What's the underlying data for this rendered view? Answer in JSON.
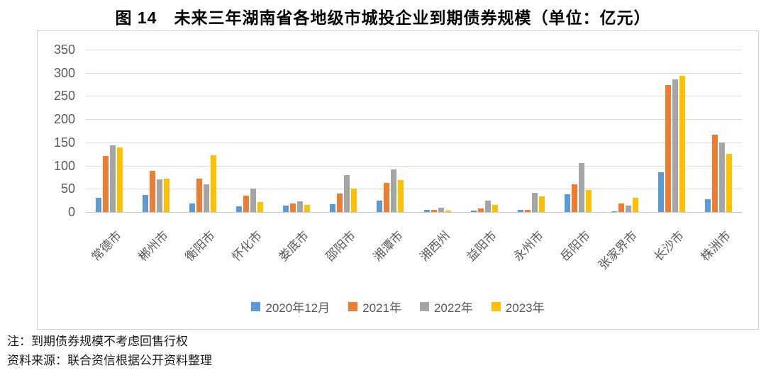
{
  "title": "图 14　未来三年湖南省各地级市城投企业到期债券规模（单位：亿元）",
  "notes": {
    "line1": "注：到期债券规模不考虑回售行权",
    "line2": "资料来源：联合资信根据公开资料整理"
  },
  "colors": {
    "series_blue": "#5B9BD5",
    "series_orange": "#ED7D31",
    "series_gray": "#A5A5A5",
    "series_yellow": "#FFC000",
    "gridline": "#d9d9d9",
    "axis_text": "#595959",
    "frame_border": "#cfcfcf"
  },
  "chart_data": {
    "type": "bar",
    "title": "图 14　未来三年湖南省各地级市城投企业到期债券规模（单位：亿元）",
    "unit": "亿元",
    "categories": [
      "常德市",
      "郴州市",
      "衡阳市",
      "怀化市",
      "娄底市",
      "邵阳市",
      "湘潭市",
      "湘西州",
      "益阳市",
      "永州市",
      "岳阳市",
      "张家界市",
      "长沙市",
      "株洲市"
    ],
    "series": [
      {
        "name": "2020年12月",
        "color": "#5B9BD5",
        "values": [
          30,
          37,
          18,
          13,
          14,
          17,
          24,
          5,
          3,
          5,
          38,
          2,
          86,
          27
        ]
      },
      {
        "name": "2021年",
        "color": "#ED7D31",
        "values": [
          121,
          89,
          72,
          35,
          19,
          40,
          63,
          5,
          7,
          4,
          60,
          19,
          274,
          166
        ]
      },
      {
        "name": "2022年",
        "color": "#A5A5A5",
        "values": [
          144,
          71,
          59,
          50,
          23,
          80,
          92,
          10,
          25,
          41,
          106,
          14,
          286,
          150
        ]
      },
      {
        "name": "2023年",
        "color": "#FFC000",
        "values": [
          139,
          72,
          122,
          22,
          15,
          51,
          69,
          3,
          15,
          34,
          48,
          31,
          294,
          125
        ]
      }
    ],
    "ylim": [
      0,
      350
    ],
    "yticks": [
      0,
      50,
      100,
      150,
      200,
      250,
      300,
      350
    ],
    "grid": true,
    "legend_position": "bottom"
  }
}
